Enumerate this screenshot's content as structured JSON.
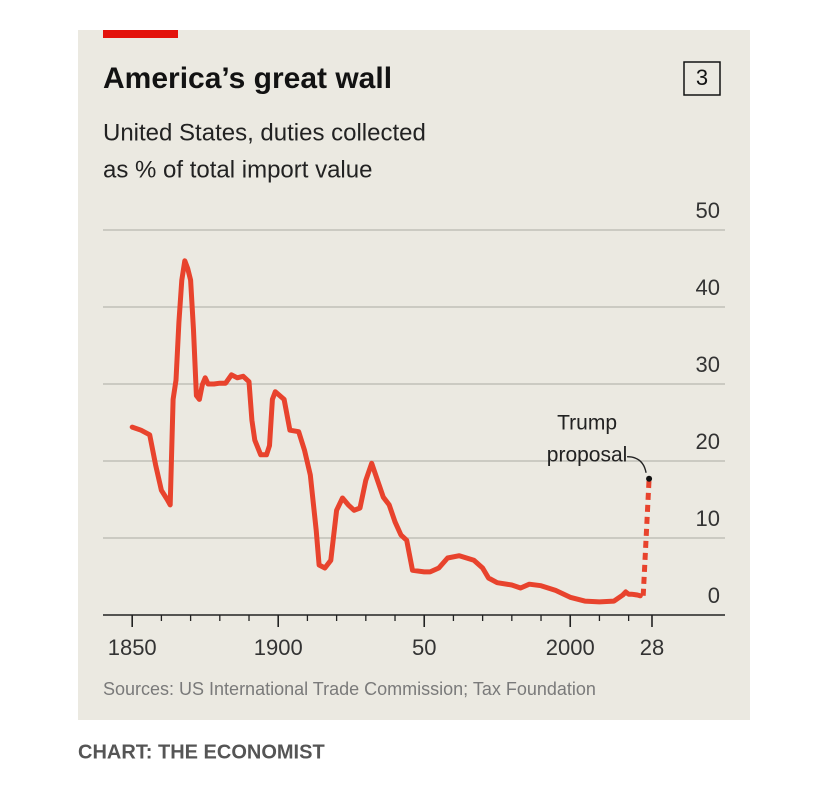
{
  "chart_data": {
    "type": "line",
    "panel_number": "3",
    "title": "America’s great wall",
    "subtitle": [
      "United States, duties collected",
      "as % of total import value"
    ],
    "source": "Sources: US International Trade Commission; Tax Foundation",
    "credit": "CHART: THE ECONOMIST",
    "annotation": {
      "lines": [
        "Trump",
        "proposal"
      ],
      "x": 2027,
      "y": 17.7
    },
    "xlim": [
      1840,
      2053
    ],
    "ylim": [
      0,
      50
    ],
    "xticks": [
      1850,
      1900,
      {
        "value": 1950,
        "label": "50"
      },
      2000,
      {
        "value": 2028,
        "label": "28"
      }
    ],
    "xminorticks": [
      1860,
      1870,
      1880,
      1890,
      1910,
      1920,
      1930,
      1940,
      1960,
      1970,
      1980,
      1990,
      2010,
      2020
    ],
    "yticks": [
      0,
      10,
      20,
      30,
      40,
      50
    ],
    "grid": true,
    "series": [
      {
        "color": "#e8432d",
        "dash": false,
        "x": [
          1850,
          1853,
          1856,
          1858,
          1860,
          1862,
          1863,
          1864,
          1865,
          1866,
          1867,
          1868,
          1869,
          1870,
          1871,
          1872,
          1873,
          1874,
          1875,
          1876,
          1878,
          1880,
          1882,
          1884,
          1886,
          1888,
          1890,
          1891,
          1892,
          1894,
          1896,
          1897,
          1898,
          1899,
          1902,
          1904,
          1907,
          1909,
          1911,
          1913,
          1914,
          1916,
          1918,
          1920,
          1922,
          1924,
          1926,
          1928,
          1930,
          1932,
          1934,
          1936,
          1938,
          1940,
          1942,
          1944,
          1946,
          1950,
          1952,
          1955,
          1958,
          1962,
          1967,
          1970,
          1972,
          1975,
          1980,
          1983,
          1986,
          1990,
          1995,
          2000,
          2005,
          2010,
          2015,
          2018,
          2019,
          2020,
          2021,
          2023,
          2024
        ],
        "values": [
          24.4,
          24,
          23.4,
          19.5,
          16.2,
          15,
          14.3,
          28,
          30.5,
          38,
          43.5,
          46,
          45,
          43.5,
          37,
          28.5,
          28,
          29.9,
          30.8,
          30,
          30,
          30.1,
          30.1,
          31.2,
          30.8,
          31,
          30.3,
          25.3,
          22.7,
          20.8,
          20.8,
          22,
          28,
          29,
          28,
          24,
          23.8,
          21.4,
          18.2,
          11,
          6.5,
          6.1,
          7.1,
          13.6,
          15.2,
          14.3,
          13.6,
          13.9,
          17.5,
          19.7,
          17.5,
          15.3,
          14.3,
          12.1,
          10.4,
          9.7,
          5.8,
          5.6,
          5.6,
          6.1,
          7.4,
          7.7,
          7.1,
          6.1,
          4.8,
          4.2,
          3.9,
          3.5,
          4,
          3.8,
          3.2,
          2.3,
          1.8,
          1.7,
          1.8,
          2.6,
          3,
          2.7,
          2.7,
          2.6,
          2.5
        ]
      },
      {
        "color": "#e8432d",
        "dash": true,
        "x": [
          2025,
          2027
        ],
        "values": [
          2.5,
          17.7
        ]
      }
    ]
  }
}
